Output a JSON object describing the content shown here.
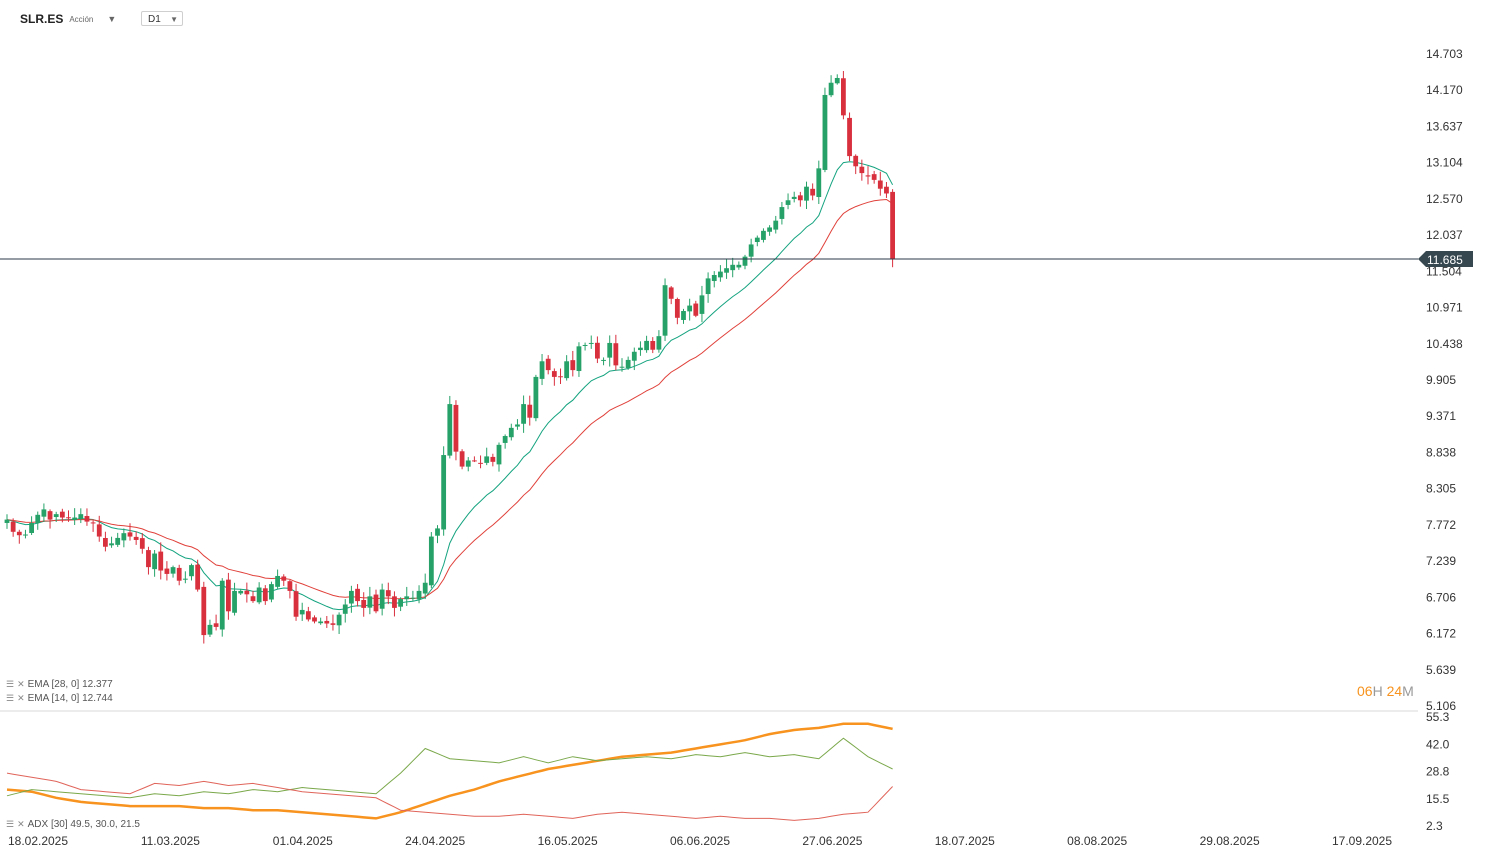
{
  "header": {
    "symbol": "SLR.ES",
    "type": "Acción",
    "timeframe": "D1"
  },
  "legend": {
    "ema28": "EMA [28, 0] 12.377",
    "ema14": "EMA [14, 0] 12.744",
    "adx": "ADX [30] 49.5, 30.0, 21.5"
  },
  "timer": {
    "hours": "06",
    "h_unit": "H",
    "minutes": "24",
    "m_unit": "M"
  },
  "colors": {
    "up": "#26a269",
    "down": "#d9303e",
    "ema14": "#14a37f",
    "ema28": "#e0403a",
    "adx": "#f7931e",
    "di_plus": "#7aa84a",
    "di_minus": "#e0645a"
  },
  "icons": [
    "lines-icon",
    "close-icon",
    "caret-down-icon"
  ],
  "chart_data": [
    {
      "type": "candlestick",
      "symbol": "SLR.ES",
      "y_ticks": [
        "14.703",
        "14.170",
        "13.637",
        "13.104",
        "12.570",
        "12.037",
        "11.504",
        "10.971",
        "10.438",
        "9.905",
        "9.371",
        "8.838",
        "8.305",
        "7.772",
        "7.239",
        "6.706",
        "6.172",
        "5.639",
        "5.106"
      ],
      "ylim": [
        5.106,
        15.0
      ],
      "current_price": "11.685",
      "x_ticks": [
        "18.02.2025",
        "11.03.2025",
        "01.04.2025",
        "24.04.2025",
        "16.05.2025",
        "06.06.2025",
        "27.06.2025",
        "18.07.2025",
        "08.08.2025",
        "29.08.2025",
        "17.09.2025"
      ],
      "closes": [
        7.85,
        7.67,
        7.62,
        7.63,
        7.8,
        7.92,
        8.0,
        7.85,
        7.93,
        7.88,
        7.87,
        7.88,
        7.93,
        7.82,
        7.8,
        7.6,
        7.45,
        7.5,
        7.58,
        7.65,
        7.6,
        7.55,
        7.42,
        7.15,
        7.35,
        7.1,
        7.05,
        7.15,
        6.95,
        6.98,
        7.18,
        6.82,
        6.15,
        6.3,
        6.27,
        6.95,
        6.5,
        6.8,
        6.8,
        6.75,
        6.65,
        6.85,
        6.65,
        6.9,
        7.02,
        6.95,
        6.8,
        6.42,
        6.52,
        6.38,
        6.35,
        6.35,
        6.32,
        6.3,
        6.45,
        6.6,
        6.8,
        6.65,
        6.55,
        6.72,
        6.5,
        6.82,
        6.72,
        6.55,
        6.68,
        6.72,
        6.7,
        6.8,
        6.92,
        7.6,
        7.72,
        8.8,
        9.55,
        8.85,
        8.63,
        8.72,
        8.72,
        8.68,
        8.78,
        8.7,
        8.95,
        9.08,
        9.2,
        9.25,
        9.55,
        9.35,
        9.95,
        10.18,
        10.05,
        9.95,
        9.95,
        10.18,
        10.05,
        10.4,
        10.42,
        10.45,
        10.22,
        10.2,
        10.45,
        10.12,
        10.1,
        10.2,
        10.32,
        10.38,
        10.48,
        10.35,
        10.55,
        11.3,
        11.1,
        10.82,
        10.92,
        11.0,
        10.85,
        11.15,
        11.4,
        11.45,
        11.5,
        11.55,
        11.6,
        11.6,
        11.72,
        11.9,
        12.0,
        12.1,
        12.15,
        12.25,
        12.45,
        12.55,
        12.6,
        12.55,
        12.75,
        12.62,
        13.02,
        14.1,
        14.28,
        14.35,
        13.8,
        13.2,
        13.05,
        12.95,
        12.9,
        12.85,
        12.72,
        12.65,
        11.68
      ],
      "series": [
        {
          "name": "EMA [28, 0] 12.377",
          "last_value": 12.377
        },
        {
          "name": "EMA [14, 0] 12.744",
          "last_value": 12.744
        }
      ]
    },
    {
      "type": "line",
      "name": "ADX [30] 49.5, 30.0, 21.5",
      "y_ticks": [
        "55.3",
        "42.0",
        "28.8",
        "15.5",
        "2.3"
      ],
      "ylim": [
        2.3,
        55.3
      ],
      "series": [
        {
          "name": "ADX",
          "last_value": 49.5
        },
        {
          "name": "+DI",
          "last_value": 30.0
        },
        {
          "name": "-DI",
          "last_value": 21.5
        }
      ]
    }
  ]
}
